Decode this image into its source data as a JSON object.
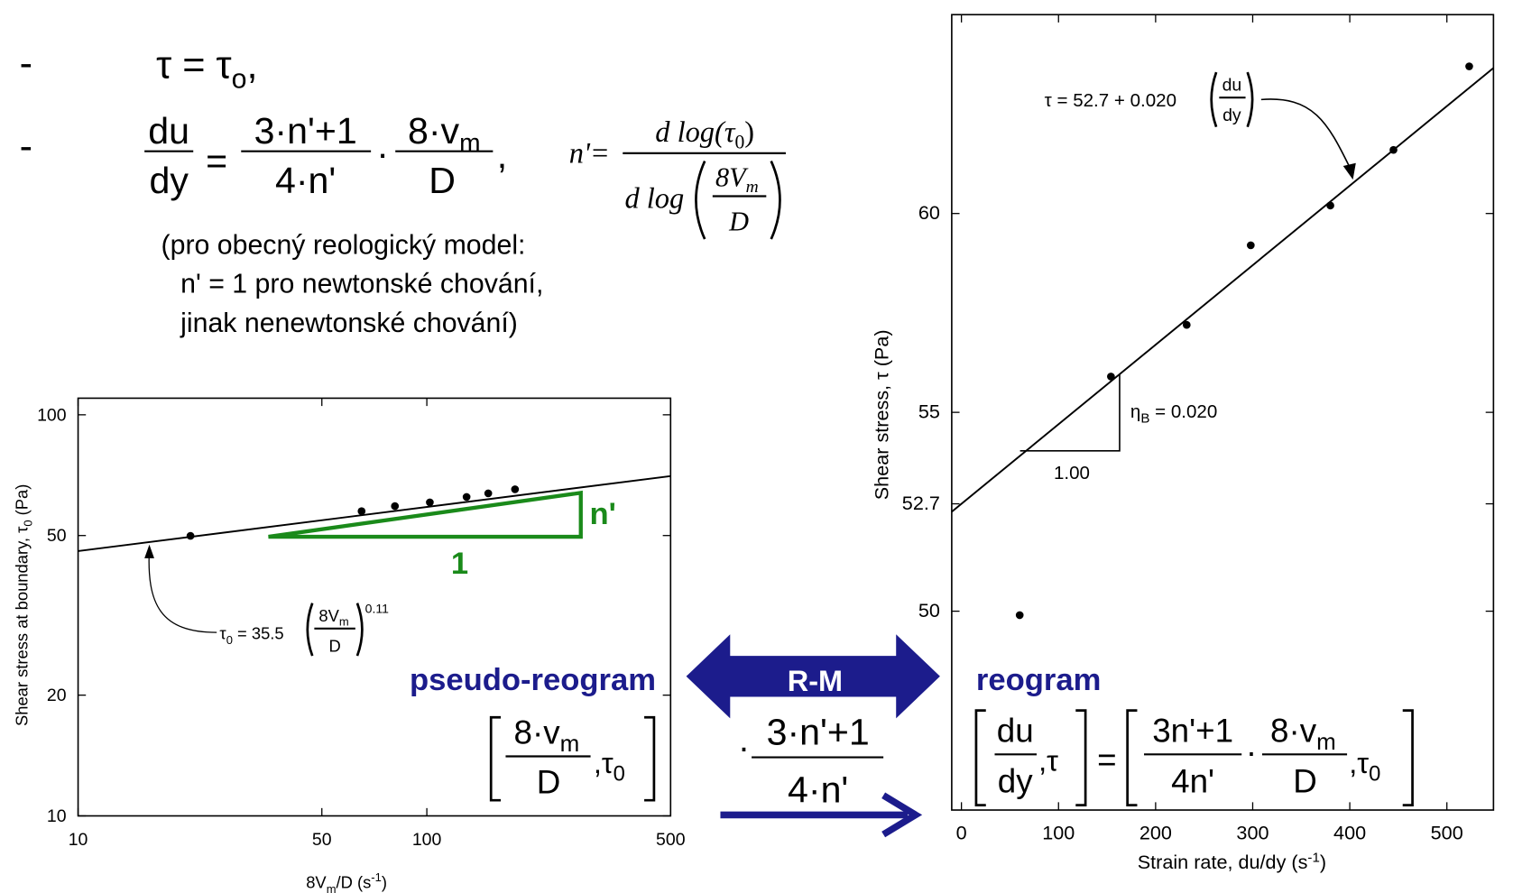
{
  "slide": {
    "bullet": "-",
    "tau_eq": [
      "τ = τ",
      "o",
      ","
    ],
    "strain_eq": {
      "lhs_num": "du",
      "lhs_den": "dy",
      "eq": "=",
      "f1_num": "3·n'+1",
      "f1_den": "4·n'",
      "dot": "·",
      "f2_num": [
        "8·v",
        "m"
      ],
      "f2_den": "D",
      "end": ","
    },
    "n_eq": {
      "lhs": "n'=",
      "num": [
        "d log(τ",
        "0",
        ")"
      ],
      "den": "d log",
      "inner_num": [
        "8V",
        "m"
      ],
      "inner_den": "D"
    },
    "note": [
      "(pro obecný reologický model:",
      "n' = 1 pro newtonské chování,",
      "jinak nenewtonské chování)"
    ],
    "transform": {
      "label": "R-M",
      "dot": "·",
      "num": "3·n'+1",
      "den": "4·n'"
    }
  },
  "chart_data": [
    {
      "type": "scatter",
      "log_x": true,
      "log_y": true,
      "xlim": [
        10,
        500
      ],
      "ylim": [
        10,
        110
      ],
      "xticks": [
        10,
        50,
        100,
        500
      ],
      "yticks": [
        10,
        20,
        50,
        100
      ],
      "x_label": [
        "8V",
        "m",
        "/D (s",
        "-1",
        ")"
      ],
      "y_label": [
        "Shear stress at boundary, τ",
        "0",
        " (Pa)"
      ],
      "x": [
        21,
        65,
        81,
        102,
        130,
        150,
        179
      ],
      "values": [
        49.9,
        57.5,
        59.2,
        60.5,
        62.4,
        63.7,
        65.2
      ],
      "color": "#000000",
      "fit": {
        "k": 35.5,
        "n": 0.11
      },
      "fit_label": [
        "τ",
        "0",
        " = 35.5",
        "8V",
        "m",
        "D",
        "0.11"
      ],
      "slope_triangle": {
        "rise_label": "n'",
        "run_label": "1",
        "color": "#1a8a1a"
      },
      "label": "pseudo-reogram",
      "label_color": "#1c1c8c",
      "coordinates": {
        "num": [
          "8·v",
          "m"
        ],
        "den": "D",
        "rest": [
          ",τ",
          "0"
        ]
      }
    },
    {
      "type": "scatter",
      "log_x": false,
      "log_y": false,
      "xlim": [
        -10,
        548
      ],
      "ylim": [
        45,
        65
      ],
      "xticks": [
        0,
        100,
        200,
        300,
        400,
        500
      ],
      "yticks": [
        50,
        52.7,
        55,
        60
      ],
      "x_label": [
        "Strain rate, du/dy (s",
        "-1",
        ")"
      ],
      "y_label": [
        "Shear stress, τ (Pa)"
      ],
      "x": [
        60,
        154,
        232,
        298,
        380,
        445,
        523
      ],
      "values": [
        49.9,
        55.9,
        57.2,
        59.2,
        60.2,
        61.6,
        63.7
      ],
      "color": "#000000",
      "fit": {
        "intercept": 52.7,
        "slope": 0.02
      },
      "fit_label": [
        "τ = 52.7 + 0.020",
        "du",
        "dy"
      ],
      "slope_triangle": {
        "run_label": "1.00",
        "rise_label": [
          "η",
          "B",
          " = 0.020"
        ]
      },
      "label": "reogram",
      "label_color": "#1c1c8c",
      "coordinates": {
        "lhs": [
          "du",
          "dy",
          ",τ"
        ],
        "eq": "=",
        "f1_num": "3n'+1",
        "f1_den": "4n'",
        "dot": "·",
        "f2_num": [
          "8·v",
          "m"
        ],
        "f2_den": "D",
        "rest": [
          ",τ",
          "0"
        ]
      }
    }
  ]
}
